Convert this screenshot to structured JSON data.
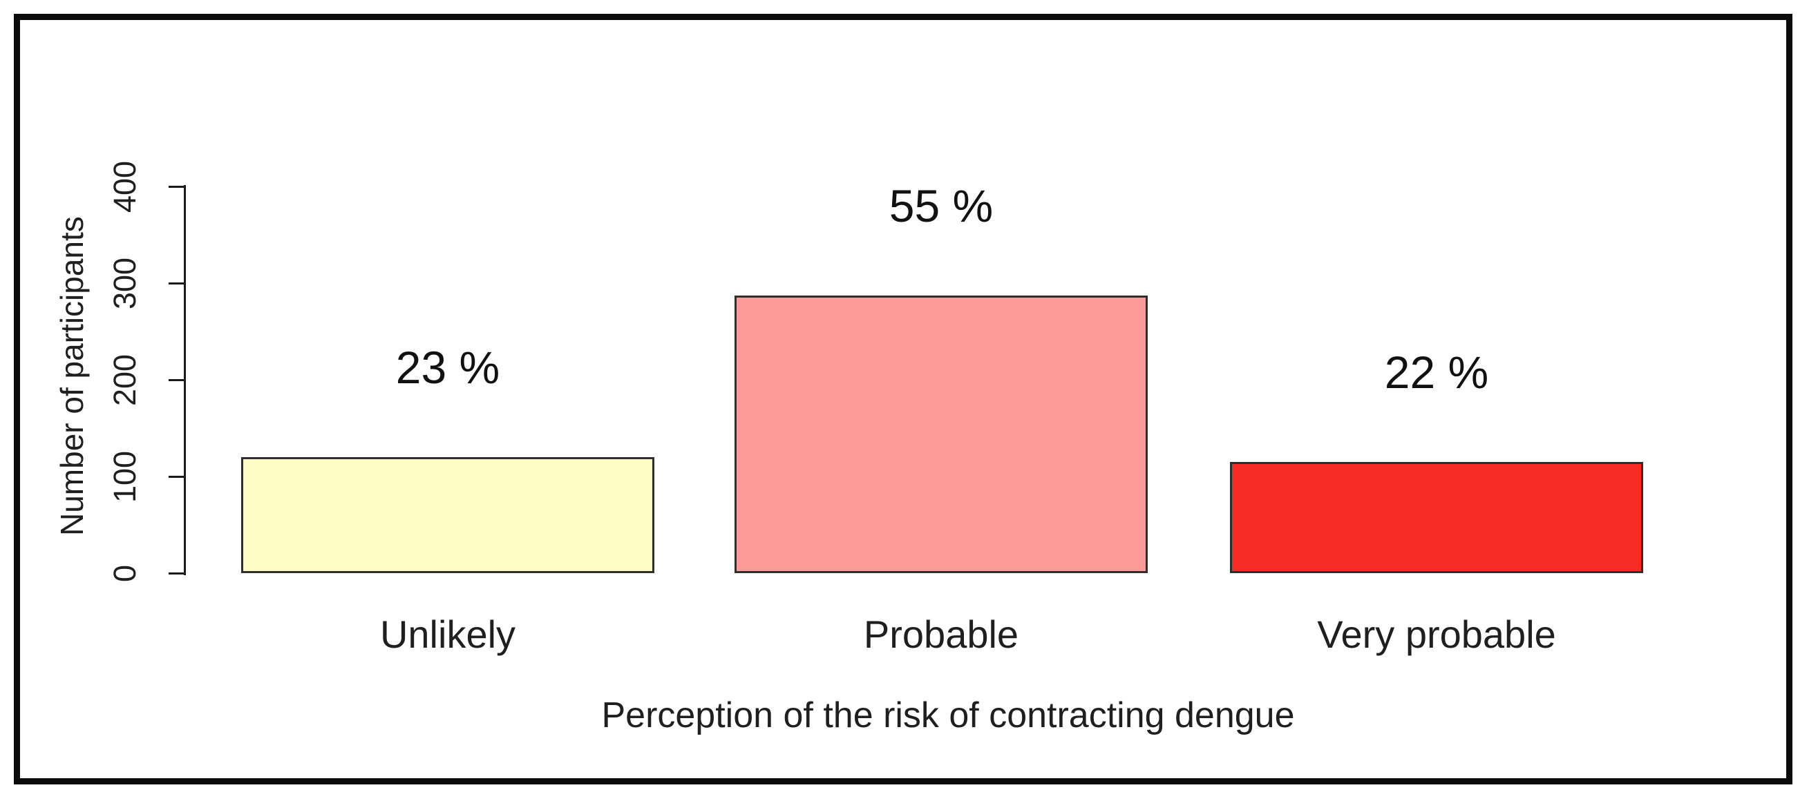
{
  "figure": {
    "background": "#ffffff",
    "frame_border_color": "#0b0b0b"
  },
  "chart_data": {
    "type": "bar",
    "title": "",
    "xlabel": "Perception of the risk of contracting dengue",
    "ylabel": "Number of participants",
    "categories": [
      "Unlikely",
      "Probable",
      "Very probable"
    ],
    "values": [
      120,
      287,
      115
    ],
    "bar_labels": [
      "23 %",
      "55 %",
      "22 %"
    ],
    "bar_colors": [
      "#FDFCC5",
      "#FB9A97",
      "#F92B25"
    ],
    "bar_border_color": "#2e2e2e",
    "axis_color": "#1a1a1a",
    "ylim": [
      0,
      400
    ],
    "yticks": [
      0,
      100,
      200,
      300,
      400
    ],
    "grid": false,
    "legend_position": "none"
  }
}
